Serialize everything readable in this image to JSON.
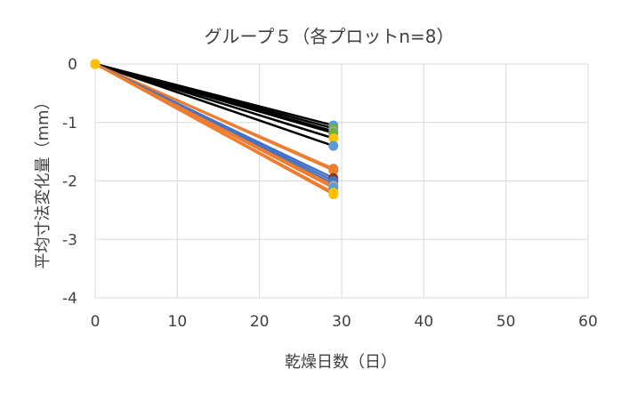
{
  "chart_data": {
    "type": "scatter",
    "title": "グループ５（各プロットn=8）",
    "xlabel": "乾燥日数（日）",
    "ylabel": "平均寸法変化量（mm）",
    "xlim": [
      0,
      60
    ],
    "ylim": [
      -4,
      0
    ],
    "x_ticks": [
      "0",
      "10",
      "20",
      "30",
      "40",
      "50",
      "60"
    ],
    "y_ticks": [
      "0",
      "-1",
      "-2",
      "-3",
      "-4"
    ],
    "x_tick_values": [
      0,
      10,
      20,
      30,
      40,
      50,
      60
    ],
    "y_tick_values": [
      0,
      -1,
      -2,
      -3,
      -4
    ],
    "grid": true,
    "legend": "none",
    "colors": {
      "black": "#000000",
      "blue": "#4472c4",
      "orange": "#ed7d31",
      "gray": "#a5a5a5",
      "gold": "#ffc000",
      "lightblue": "#5b9bd5",
      "green": "#70ad47",
      "darkbrown": "#843c0c",
      "grid": "#d9d9d9",
      "text": "#404040"
    },
    "series": [
      {
        "color": "black",
        "marker": "lightblue",
        "x": [
          0,
          29
        ],
        "y": [
          0,
          -1.05
        ]
      },
      {
        "color": "black",
        "marker": "green",
        "x": [
          0,
          29
        ],
        "y": [
          0,
          -1.1
        ]
      },
      {
        "color": "black",
        "marker": "gray",
        "x": [
          0,
          29
        ],
        "y": [
          0,
          -1.15
        ]
      },
      {
        "color": "black",
        "marker": "green",
        "x": [
          0,
          29
        ],
        "y": [
          0,
          -1.18
        ]
      },
      {
        "color": "black",
        "marker": "gold",
        "x": [
          0,
          29
        ],
        "y": [
          0,
          -1.27
        ]
      },
      {
        "color": "black",
        "marker": "lightblue",
        "x": [
          0,
          29
        ],
        "y": [
          0,
          -1.4
        ]
      },
      {
        "color": "orange",
        "marker": "orange",
        "x": [
          0,
          29
        ],
        "y": [
          0,
          -1.79
        ]
      },
      {
        "color": "orange",
        "marker": "orange",
        "x": [
          0,
          29
        ],
        "y": [
          0,
          -1.82
        ]
      },
      {
        "color": "blue",
        "marker": "darkbrown",
        "x": [
          0,
          29
        ],
        "y": [
          0,
          -1.95
        ]
      },
      {
        "color": "blue",
        "marker": "blue",
        "x": [
          0,
          29
        ],
        "y": [
          0,
          -2.0
        ]
      },
      {
        "color": "blue",
        "marker": "blue",
        "x": [
          0,
          29
        ],
        "y": [
          0,
          -2.05
        ]
      },
      {
        "color": "orange",
        "marker": "gray",
        "x": [
          0,
          29
        ],
        "y": [
          0,
          -2.08
        ]
      },
      {
        "color": "orange",
        "marker": "lightblue",
        "x": [
          0,
          29
        ],
        "y": [
          0,
          -2.12
        ]
      },
      {
        "color": "orange",
        "marker": "gold",
        "x": [
          0,
          29
        ],
        "y": [
          0,
          -2.2
        ]
      },
      {
        "color": "orange",
        "marker": "gold",
        "x": [
          0,
          29
        ],
        "y": [
          0,
          -2.23
        ]
      }
    ]
  }
}
